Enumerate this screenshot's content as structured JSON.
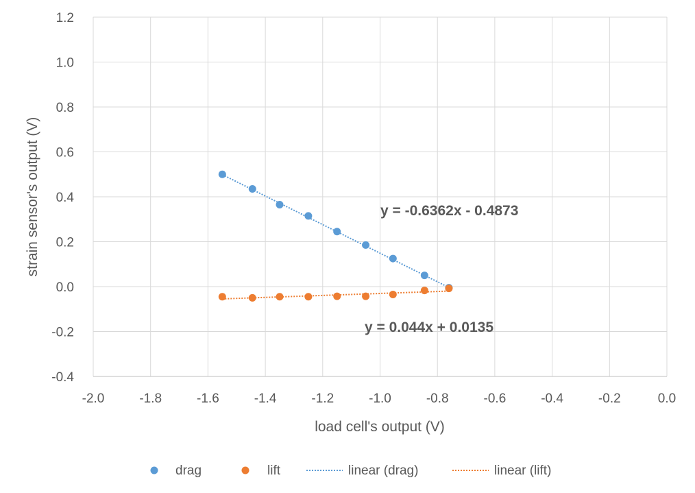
{
  "chart_data": {
    "type": "scatter",
    "title": "",
    "xlabel": "load cell's output (V)",
    "ylabel": "strain sensor's output (V)",
    "xlim": [
      -2.0,
      0.0
    ],
    "ylim": [
      -0.4,
      1.2
    ],
    "xticks": [
      -2.0,
      -1.8,
      -1.6,
      -1.4,
      -1.2,
      -1.0,
      -0.8,
      -0.6,
      -0.4,
      -0.2,
      0.0
    ],
    "yticks": [
      -0.4,
      -0.2,
      0.0,
      0.2,
      0.4,
      0.6,
      0.8,
      1.0,
      1.2
    ],
    "xtick_labels": [
      "-2.0",
      "-1.8",
      "-1.6",
      "-1.4",
      "-1.2",
      "-1.0",
      "-0.8",
      "-0.6",
      "-0.4",
      "-0.2",
      "0.0"
    ],
    "ytick_labels": [
      "-0.4",
      "-0.2",
      "0.0",
      "0.2",
      "0.4",
      "0.6",
      "0.8",
      "1.0",
      "1.2"
    ],
    "grid": true,
    "legend_position": "bottom",
    "series": [
      {
        "name": "drag",
        "color": "#5B9BD5",
        "points": [
          {
            "x": -1.55,
            "y": 0.5
          },
          {
            "x": -1.445,
            "y": 0.435
          },
          {
            "x": -1.35,
            "y": 0.365
          },
          {
            "x": -1.25,
            "y": 0.315
          },
          {
            "x": -1.15,
            "y": 0.245
          },
          {
            "x": -1.05,
            "y": 0.185
          },
          {
            "x": -0.955,
            "y": 0.125
          },
          {
            "x": -0.845,
            "y": 0.05
          },
          {
            "x": -0.76,
            "y": -0.005
          }
        ]
      },
      {
        "name": "lift",
        "color": "#ED7D31",
        "points": [
          {
            "x": -1.55,
            "y": -0.045
          },
          {
            "x": -1.445,
            "y": -0.05
          },
          {
            "x": -1.35,
            "y": -0.045
          },
          {
            "x": -1.25,
            "y": -0.045
          },
          {
            "x": -1.15,
            "y": -0.043
          },
          {
            "x": -1.05,
            "y": -0.043
          },
          {
            "x": -0.955,
            "y": -0.035
          },
          {
            "x": -0.845,
            "y": -0.017
          },
          {
            "x": -0.76,
            "y": -0.008
          }
        ]
      }
    ],
    "trendlines": [
      {
        "name": "linear (drag)",
        "color": "#5B9BD5",
        "slope": -0.6362,
        "intercept": -0.4873,
        "x_range": [
          -1.55,
          -0.76
        ],
        "equation": "y = -0.6362x - 0.4873"
      },
      {
        "name": "linear (lift)",
        "color": "#ED7D31",
        "slope": 0.044,
        "intercept": 0.0135,
        "x_range": [
          -1.55,
          -0.76
        ],
        "equation": "y = 0.044x + 0.0135"
      }
    ],
    "legend": [
      "drag",
      "lift",
      "linear (drag)",
      "linear (lift)"
    ]
  }
}
